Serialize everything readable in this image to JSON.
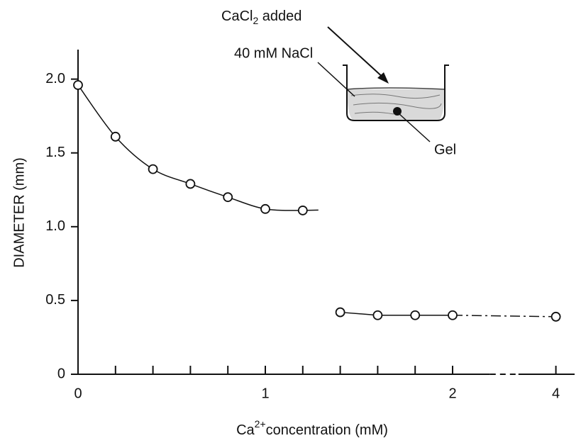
{
  "chart_data": {
    "type": "scatter",
    "x_label": {
      "base": "Ca",
      "sup": "2+",
      "rest": "concentration (mM)"
    },
    "y_label": "DIAMETER (mm)",
    "series": [
      {
        "color": "#111111",
        "x": [
          0,
          0.2,
          0.4,
          0.6,
          0.8,
          1.0,
          1.2
        ],
        "values": [
          1.96,
          1.61,
          1.39,
          1.29,
          1.2,
          1.12,
          1.11
        ]
      },
      {
        "color": "#111111",
        "x": [
          1.4,
          1.6,
          1.8,
          2.0,
          4
        ],
        "values": [
          0.42,
          0.4,
          0.4,
          0.4,
          0.39
        ]
      }
    ],
    "xlim": [
      0,
      4.1
    ],
    "x_break": [
      2.2,
      3.8
    ],
    "xticks": [
      0,
      1,
      2,
      4
    ],
    "xminor_ticks": [
      0.2,
      0.4,
      0.6,
      0.8,
      1.2,
      1.4,
      1.6,
      1.8
    ],
    "ylim": [
      0,
      2.2
    ],
    "yticks": [
      0,
      0.5,
      {
        "value": 1,
        "label": "1.0"
      },
      1.5,
      {
        "value": 2,
        "label": "2.0"
      }
    ],
    "annotations": {
      "added": {
        "base": "CaCl",
        "sub": "2",
        "rest": " added"
      },
      "medium": "40 mM NaCl",
      "gel": "Gel"
    }
  }
}
